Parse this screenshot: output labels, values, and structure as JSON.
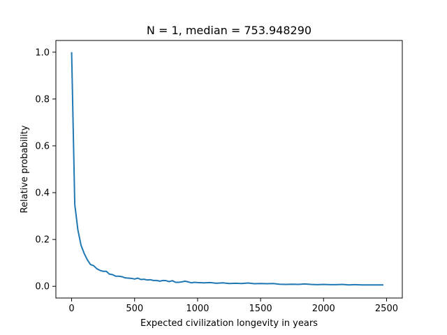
{
  "chart_data": {
    "type": "line",
    "title": "N = 1, median = 753.948290",
    "xlabel": "Expected civilization longevity in years",
    "ylabel": "Relative probability",
    "xlim": [
      -125,
      2625
    ],
    "ylim": [
      -0.05,
      1.05
    ],
    "xticks": [
      0,
      500,
      1000,
      1500,
      2000,
      2500
    ],
    "yticks": [
      0.0,
      0.2,
      0.4,
      0.6,
      0.8,
      1.0
    ],
    "ytick_labels": [
      "0.0",
      "0.2",
      "0.4",
      "0.6",
      "0.8",
      "1.0"
    ],
    "grid": false,
    "line_color": "#1f77b4",
    "series": [
      {
        "x": [
          0,
          25,
          50,
          75,
          100,
          125,
          150,
          175,
          200,
          225,
          250,
          275,
          300,
          325,
          350,
          375,
          400,
          425,
          450,
          475,
          500,
          525,
          550,
          575,
          600,
          625,
          650,
          675,
          700,
          725,
          750,
          775,
          800,
          825,
          850,
          875,
          900,
          925,
          950,
          975,
          1000,
          1050,
          1100,
          1150,
          1200,
          1250,
          1300,
          1350,
          1400,
          1450,
          1500,
          1550,
          1600,
          1650,
          1700,
          1750,
          1800,
          1850,
          1900,
          1950,
          2000,
          2050,
          2100,
          2150,
          2200,
          2250,
          2300,
          2350,
          2400,
          2450,
          2475
        ],
        "y": [
          1.0,
          0.35,
          0.24,
          0.175,
          0.14,
          0.113,
          0.093,
          0.088,
          0.075,
          0.068,
          0.064,
          0.064,
          0.052,
          0.05,
          0.043,
          0.043,
          0.041,
          0.036,
          0.035,
          0.034,
          0.031,
          0.035,
          0.029,
          0.03,
          0.027,
          0.028,
          0.025,
          0.025,
          0.022,
          0.025,
          0.024,
          0.02,
          0.024,
          0.017,
          0.017,
          0.019,
          0.022,
          0.019,
          0.015,
          0.017,
          0.016,
          0.015,
          0.016,
          0.013,
          0.015,
          0.012,
          0.013,
          0.012,
          0.014,
          0.011,
          0.012,
          0.011,
          0.012,
          0.009,
          0.008,
          0.009,
          0.008,
          0.01,
          0.008,
          0.007,
          0.008,
          0.007,
          0.007,
          0.008,
          0.006,
          0.007,
          0.006,
          0.006,
          0.006,
          0.006,
          0.006
        ]
      }
    ]
  }
}
